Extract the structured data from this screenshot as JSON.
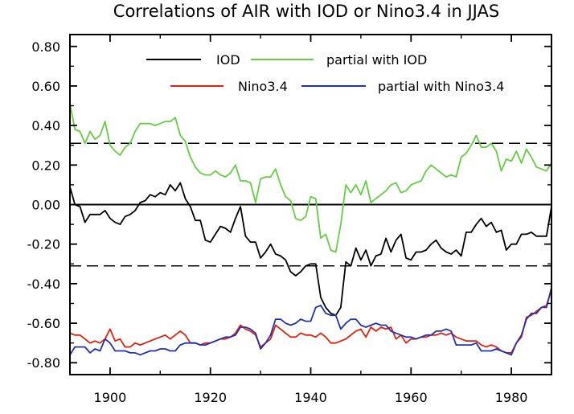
{
  "chart_data": {
    "type": "line",
    "title": "Correlations of AIR with IOD or Nino3.4 in JJAS",
    "xlabel": "",
    "ylabel": "",
    "xlim": [
      1892,
      1988
    ],
    "ylim": [
      -0.86,
      0.86
    ],
    "x_ticks": [
      1900,
      1920,
      1940,
      1960,
      1980
    ],
    "x_tick_labels": [
      "1900",
      "1920",
      "1940",
      "1960",
      "1980"
    ],
    "y_ticks": [
      0.8,
      0.6,
      0.4,
      0.2,
      0.0,
      -0.2,
      -0.4,
      -0.6,
      -0.8
    ],
    "y_tick_labels": [
      "0.80",
      "0.60",
      "0.40",
      "0.20",
      "0.00",
      "-0.20",
      "-0.40",
      "-0.60",
      "-0.80"
    ],
    "legend_placement": "top",
    "reference_lines": [
      {
        "y": 0.0,
        "style": "solid"
      },
      {
        "y": 0.31,
        "style": "dashed"
      },
      {
        "y": -0.31,
        "style": "dashed"
      }
    ],
    "colors": {
      "iod": "#000000",
      "partial_iod": "#66cc44",
      "nino": "#dd2211",
      "partial_nino": "#2233aa"
    },
    "series": [
      {
        "name": "IOD",
        "key": "iod",
        "x": [
          1892,
          1893,
          1894,
          1895,
          1896,
          1897,
          1898,
          1899,
          1900,
          1901,
          1902,
          1903,
          1904,
          1905,
          1906,
          1907,
          1908,
          1909,
          1910,
          1911,
          1912,
          1913,
          1914,
          1915,
          1916,
          1917,
          1918,
          1919,
          1920,
          1921,
          1922,
          1923,
          1924,
          1925,
          1926,
          1927,
          1928,
          1929,
          1930,
          1931,
          1932,
          1933,
          1934,
          1935,
          1936,
          1937,
          1938,
          1939,
          1940,
          1941,
          1942,
          1943,
          1944,
          1945,
          1946,
          1947,
          1948,
          1949,
          1950,
          1951,
          1952,
          1953,
          1954,
          1955,
          1956,
          1957,
          1958,
          1959,
          1960,
          1961,
          1962,
          1963,
          1964,
          1965,
          1966,
          1967,
          1968,
          1969,
          1970,
          1971,
          1972,
          1973,
          1974,
          1975,
          1976,
          1977,
          1978,
          1979,
          1980,
          1981,
          1982,
          1983,
          1984,
          1985,
          1986,
          1987,
          1988
        ],
        "values": [
          0.09,
          0.0,
          -0.01,
          -0.09,
          -0.05,
          -0.05,
          -0.05,
          -0.03,
          -0.07,
          -0.09,
          -0.1,
          -0.06,
          -0.05,
          -0.03,
          0.01,
          0.02,
          0.05,
          0.04,
          0.06,
          0.05,
          0.1,
          0.07,
          0.11,
          0.03,
          -0.01,
          -0.08,
          -0.08,
          -0.18,
          -0.19,
          -0.15,
          -0.11,
          -0.12,
          -0.14,
          -0.07,
          -0.01,
          -0.16,
          -0.19,
          -0.19,
          -0.27,
          -0.24,
          -0.2,
          -0.25,
          -0.26,
          -0.28,
          -0.34,
          -0.36,
          -0.34,
          -0.31,
          -0.3,
          -0.3,
          -0.47,
          -0.52,
          -0.55,
          -0.56,
          -0.52,
          -0.29,
          -0.31,
          -0.22,
          -0.28,
          -0.23,
          -0.31,
          -0.26,
          -0.25,
          -0.17,
          -0.24,
          -0.18,
          -0.15,
          -0.27,
          -0.28,
          -0.24,
          -0.24,
          -0.23,
          -0.2,
          -0.18,
          -0.22,
          -0.24,
          -0.25,
          -0.23,
          -0.26,
          -0.14,
          -0.14,
          -0.1,
          -0.07,
          -0.11,
          -0.09,
          -0.14,
          -0.13,
          -0.23,
          -0.2,
          -0.2,
          -0.15,
          -0.15,
          -0.14,
          -0.16,
          -0.16,
          -0.16,
          -0.01
        ]
      },
      {
        "name": "partial with IOD",
        "key": "partial_iod",
        "x": [
          1892,
          1893,
          1894,
          1895,
          1896,
          1897,
          1898,
          1899,
          1900,
          1901,
          1902,
          1903,
          1904,
          1905,
          1906,
          1907,
          1908,
          1909,
          1910,
          1911,
          1912,
          1913,
          1914,
          1915,
          1916,
          1917,
          1918,
          1919,
          1920,
          1921,
          1922,
          1923,
          1924,
          1925,
          1926,
          1927,
          1928,
          1929,
          1930,
          1931,
          1932,
          1933,
          1934,
          1935,
          1936,
          1937,
          1938,
          1939,
          1940,
          1941,
          1942,
          1943,
          1944,
          1945,
          1946,
          1947,
          1948,
          1949,
          1950,
          1951,
          1952,
          1953,
          1954,
          1955,
          1956,
          1957,
          1958,
          1959,
          1960,
          1961,
          1962,
          1963,
          1964,
          1965,
          1966,
          1967,
          1968,
          1969,
          1970,
          1971,
          1972,
          1973,
          1974,
          1975,
          1976,
          1977,
          1978,
          1979,
          1980,
          1981,
          1982,
          1983,
          1984,
          1985,
          1986,
          1987,
          1988
        ],
        "values": [
          0.51,
          0.38,
          0.37,
          0.31,
          0.37,
          0.33,
          0.35,
          0.42,
          0.3,
          0.27,
          0.25,
          0.29,
          0.31,
          0.37,
          0.41,
          0.41,
          0.41,
          0.4,
          0.41,
          0.42,
          0.42,
          0.44,
          0.35,
          0.32,
          0.24,
          0.19,
          0.16,
          0.15,
          0.15,
          0.17,
          0.15,
          0.14,
          0.16,
          0.2,
          0.12,
          0.12,
          0.11,
          0.01,
          0.13,
          0.14,
          0.14,
          0.18,
          0.1,
          0.04,
          0.02,
          -0.07,
          -0.08,
          -0.06,
          0.04,
          0.03,
          -0.17,
          -0.15,
          -0.23,
          -0.24,
          -0.1,
          0.1,
          0.06,
          0.1,
          0.05,
          0.12,
          0.01,
          0.03,
          0.05,
          0.07,
          0.1,
          0.11,
          0.06,
          0.07,
          0.1,
          0.11,
          0.12,
          0.17,
          0.2,
          0.18,
          0.16,
          0.14,
          0.15,
          0.14,
          0.24,
          0.26,
          0.3,
          0.35,
          0.29,
          0.29,
          0.31,
          0.27,
          0.17,
          0.23,
          0.22,
          0.27,
          0.21,
          0.28,
          0.24,
          0.19,
          0.18,
          0.17,
          0.21
        ]
      },
      {
        "name": "Nino3.4",
        "key": "nino",
        "x": [
          1892,
          1893,
          1894,
          1895,
          1896,
          1897,
          1898,
          1899,
          1900,
          1901,
          1902,
          1903,
          1904,
          1905,
          1906,
          1907,
          1908,
          1909,
          1910,
          1911,
          1912,
          1913,
          1914,
          1915,
          1916,
          1917,
          1918,
          1919,
          1920,
          1921,
          1922,
          1923,
          1924,
          1925,
          1926,
          1927,
          1928,
          1929,
          1930,
          1931,
          1932,
          1933,
          1934,
          1935,
          1936,
          1937,
          1938,
          1939,
          1940,
          1941,
          1942,
          1943,
          1944,
          1945,
          1946,
          1947,
          1948,
          1949,
          1950,
          1951,
          1952,
          1953,
          1954,
          1955,
          1956,
          1957,
          1958,
          1959,
          1960,
          1961,
          1962,
          1963,
          1964,
          1965,
          1966,
          1967,
          1968,
          1969,
          1970,
          1971,
          1972,
          1973,
          1974,
          1975,
          1976,
          1977,
          1978,
          1979,
          1980,
          1981,
          1982,
          1983,
          1984,
          1985,
          1986,
          1987,
          1988
        ],
        "values": [
          -0.65,
          -0.66,
          -0.66,
          -0.68,
          -0.7,
          -0.69,
          -0.7,
          -0.68,
          -0.63,
          -0.69,
          -0.68,
          -0.72,
          -0.72,
          -0.7,
          -0.71,
          -0.7,
          -0.69,
          -0.68,
          -0.67,
          -0.66,
          -0.68,
          -0.66,
          -0.64,
          -0.66,
          -0.7,
          -0.7,
          -0.71,
          -0.7,
          -0.7,
          -0.69,
          -0.68,
          -0.68,
          -0.67,
          -0.65,
          -0.61,
          -0.63,
          -0.64,
          -0.66,
          -0.72,
          -0.7,
          -0.68,
          -0.61,
          -0.63,
          -0.65,
          -0.67,
          -0.67,
          -0.65,
          -0.66,
          -0.66,
          -0.67,
          -0.65,
          -0.67,
          -0.7,
          -0.7,
          -0.69,
          -0.68,
          -0.66,
          -0.64,
          -0.63,
          -0.67,
          -0.62,
          -0.64,
          -0.62,
          -0.63,
          -0.62,
          -0.68,
          -0.66,
          -0.7,
          -0.68,
          -0.68,
          -0.67,
          -0.67,
          -0.66,
          -0.66,
          -0.65,
          -0.66,
          -0.65,
          -0.67,
          -0.68,
          -0.69,
          -0.69,
          -0.69,
          -0.71,
          -0.72,
          -0.71,
          -0.72,
          -0.74,
          -0.75,
          -0.75,
          -0.7,
          -0.67,
          -0.57,
          -0.56,
          -0.54,
          -0.52,
          -0.51,
          -0.43
        ]
      },
      {
        "name": "partial with Nino3.4",
        "key": "partial_nino",
        "x": [
          1892,
          1893,
          1894,
          1895,
          1896,
          1897,
          1898,
          1899,
          1900,
          1901,
          1902,
          1903,
          1904,
          1905,
          1906,
          1907,
          1908,
          1909,
          1910,
          1911,
          1912,
          1913,
          1914,
          1915,
          1916,
          1917,
          1918,
          1919,
          1920,
          1921,
          1922,
          1923,
          1924,
          1925,
          1926,
          1927,
          1928,
          1929,
          1930,
          1931,
          1932,
          1933,
          1934,
          1935,
          1936,
          1937,
          1938,
          1939,
          1940,
          1941,
          1942,
          1943,
          1944,
          1945,
          1946,
          1947,
          1948,
          1949,
          1950,
          1951,
          1952,
          1953,
          1954,
          1955,
          1956,
          1957,
          1958,
          1959,
          1960,
          1961,
          1962,
          1963,
          1964,
          1965,
          1966,
          1967,
          1968,
          1969,
          1970,
          1971,
          1972,
          1973,
          1974,
          1975,
          1976,
          1977,
          1978,
          1979,
          1980,
          1981,
          1982,
          1983,
          1984,
          1985,
          1986,
          1987,
          1988
        ],
        "values": [
          -0.76,
          -0.72,
          -0.72,
          -0.72,
          -0.75,
          -0.73,
          -0.74,
          -0.68,
          -0.7,
          -0.74,
          -0.74,
          -0.74,
          -0.75,
          -0.75,
          -0.76,
          -0.75,
          -0.74,
          -0.74,
          -0.73,
          -0.73,
          -0.74,
          -0.74,
          -0.71,
          -0.7,
          -0.7,
          -0.7,
          -0.71,
          -0.71,
          -0.7,
          -0.69,
          -0.68,
          -0.67,
          -0.67,
          -0.66,
          -0.62,
          -0.62,
          -0.63,
          -0.65,
          -0.73,
          -0.7,
          -0.66,
          -0.58,
          -0.58,
          -0.6,
          -0.61,
          -0.6,
          -0.58,
          -0.59,
          -0.59,
          -0.52,
          -0.51,
          -0.55,
          -0.56,
          -0.56,
          -0.63,
          -0.6,
          -0.58,
          -0.58,
          -0.61,
          -0.62,
          -0.61,
          -0.6,
          -0.61,
          -0.61,
          -0.64,
          -0.65,
          -0.66,
          -0.67,
          -0.67,
          -0.68,
          -0.67,
          -0.66,
          -0.66,
          -0.64,
          -0.64,
          -0.63,
          -0.64,
          -0.71,
          -0.71,
          -0.71,
          -0.71,
          -0.7,
          -0.74,
          -0.74,
          -0.74,
          -0.73,
          -0.74,
          -0.75,
          -0.76,
          -0.7,
          -0.66,
          -0.58,
          -0.55,
          -0.55,
          -0.52,
          -0.52,
          -0.42
        ]
      }
    ]
  }
}
